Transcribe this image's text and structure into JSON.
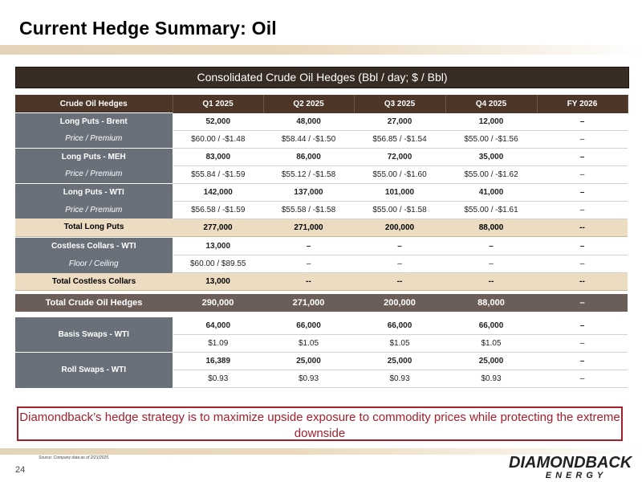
{
  "title": "Current Hedge Summary: Oil",
  "banner": "Consolidated Crude Oil Hedges (Bbl / day; $ / Bbl)",
  "columns": [
    "Crude Oil Hedges",
    "Q1 2025",
    "Q2 2025",
    "Q3 2025",
    "Q4 2025",
    "FY 2026"
  ],
  "long_puts_brent": {
    "label": "Long Puts - Brent",
    "values": [
      "52,000",
      "48,000",
      "27,000",
      "12,000",
      "–"
    ],
    "sub_label": "Price / Premium",
    "sub_values": [
      "$60.00 / -$1.48",
      "$58.44 / -$1.50",
      "$56.85 / -$1.54",
      "$55.00 / -$1.56",
      "–"
    ]
  },
  "long_puts_meh": {
    "label": "Long Puts - MEH",
    "values": [
      "83,000",
      "86,000",
      "72,000",
      "35,000",
      "–"
    ],
    "sub_label": "Price / Premium",
    "sub_values": [
      "$55.84 / -$1.59",
      "$55.12 / -$1.58",
      "$55.00 / -$1.60",
      "$55.00 / -$1.62",
      "–"
    ]
  },
  "long_puts_wti": {
    "label": "Long Puts - WTI",
    "values": [
      "142,000",
      "137,000",
      "101,000",
      "41,000",
      "–"
    ],
    "sub_label": "Price / Premium",
    "sub_values": [
      "$56.58 / -$1.59",
      "$55.58 / -$1.58",
      "$55.00 / -$1.58",
      "$55.00 / -$1.61",
      "–"
    ]
  },
  "total_long_puts": {
    "label": "Total Long Puts",
    "values": [
      "277,000",
      "271,000",
      "200,000",
      "88,000",
      "--"
    ]
  },
  "costless_collars": {
    "label": "Costless Collars - WTI",
    "values": [
      "13,000",
      "–",
      "–",
      "–",
      "–"
    ],
    "sub_label": "Floor / Ceiling",
    "sub_values": [
      "$60.00 / $89.55",
      "–",
      "–",
      "–",
      "–"
    ]
  },
  "total_costless": {
    "label": "Total Costless Collars",
    "values": [
      "13,000",
      "--",
      "--",
      "--",
      "--"
    ]
  },
  "total_crude": {
    "label": "Total Crude Oil Hedges",
    "values": [
      "290,000",
      "271,000",
      "200,000",
      "88,000",
      "–"
    ]
  },
  "basis_swaps": {
    "label": "Basis Swaps - WTI",
    "values": [
      "64,000",
      "66,000",
      "66,000",
      "66,000",
      "–"
    ],
    "sub_values": [
      "$1.09",
      "$1.05",
      "$1.05",
      "$1.05",
      "–"
    ]
  },
  "roll_swaps": {
    "label": "Roll Swaps - WTI",
    "values": [
      "16,389",
      "25,000",
      "25,000",
      "25,000",
      "–"
    ],
    "sub_values": [
      "$0.93",
      "$0.93",
      "$0.93",
      "$0.93",
      "–"
    ]
  },
  "callout": "Diamondback’s hedge strategy is to maximize upside exposure to commodity prices while protecting the extreme downside",
  "source": "Source: Company data as of 2/21/2025.",
  "page_number": "24",
  "logo": {
    "line1": "DIAMONDBACK",
    "line2": "ENERGY"
  },
  "colors": {
    "header_bg": "#4d3628",
    "banner_bg": "#372c24",
    "label_bg": "#69707a",
    "total_bg": "#ecdcc2",
    "grand_total_bg": "#6b5e58",
    "callout_accent": "#a31f2e"
  }
}
